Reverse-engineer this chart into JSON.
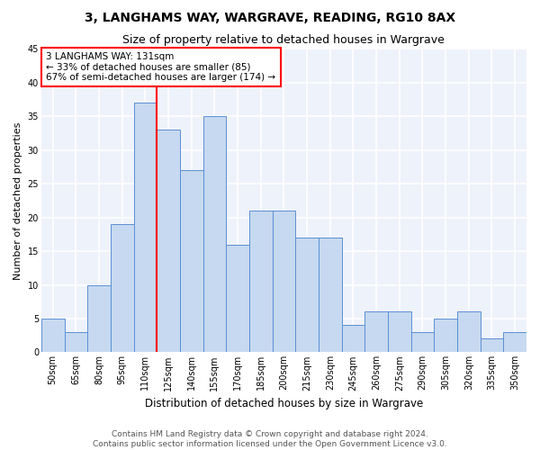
{
  "title": "3, LANGHAMS WAY, WARGRAVE, READING, RG10 8AX",
  "subtitle": "Size of property relative to detached houses in Wargrave",
  "xlabel": "Distribution of detached houses by size in Wargrave",
  "ylabel": "Number of detached properties",
  "bar_color": "#c6d9f0",
  "bar_edge_color": "#5b8fd4",
  "categories": [
    "50sqm",
    "65sqm",
    "80sqm",
    "95sqm",
    "110sqm",
    "125sqm",
    "140sqm",
    "155sqm",
    "170sqm",
    "185sqm",
    "200sqm",
    "215sqm",
    "230sqm",
    "245sqm",
    "260sqm",
    "275sqm",
    "290sqm",
    "305sqm",
    "320sqm",
    "335sqm",
    "350sqm"
  ],
  "bar_values": [
    5,
    3,
    10,
    19,
    37,
    33,
    27,
    35,
    16,
    21,
    21,
    17,
    17,
    4,
    6,
    6,
    3,
    5,
    6,
    2,
    3
  ],
  "ylim": [
    0,
    45
  ],
  "yticks": [
    0,
    5,
    10,
    15,
    20,
    25,
    30,
    35,
    40,
    45
  ],
  "vline_pos": 4.5,
  "annotation_text": "3 LANGHAMS WAY: 131sqm\n← 33% of detached houses are smaller (85)\n67% of semi-detached houses are larger (174) →",
  "annotation_box_color": "white",
  "annotation_box_edge_color": "red",
  "vline_color": "red",
  "footer_line1": "Contains HM Land Registry data © Crown copyright and database right 2024.",
  "footer_line2": "Contains public sector information licensed under the Open Government Licence v3.0.",
  "background_color": "#eef2fa",
  "grid_color": "white",
  "title_fontsize": 10,
  "subtitle_fontsize": 9,
  "tick_fontsize": 7,
  "ylabel_fontsize": 8,
  "xlabel_fontsize": 8.5,
  "annotation_fontsize": 7.5,
  "footer_fontsize": 6.5
}
